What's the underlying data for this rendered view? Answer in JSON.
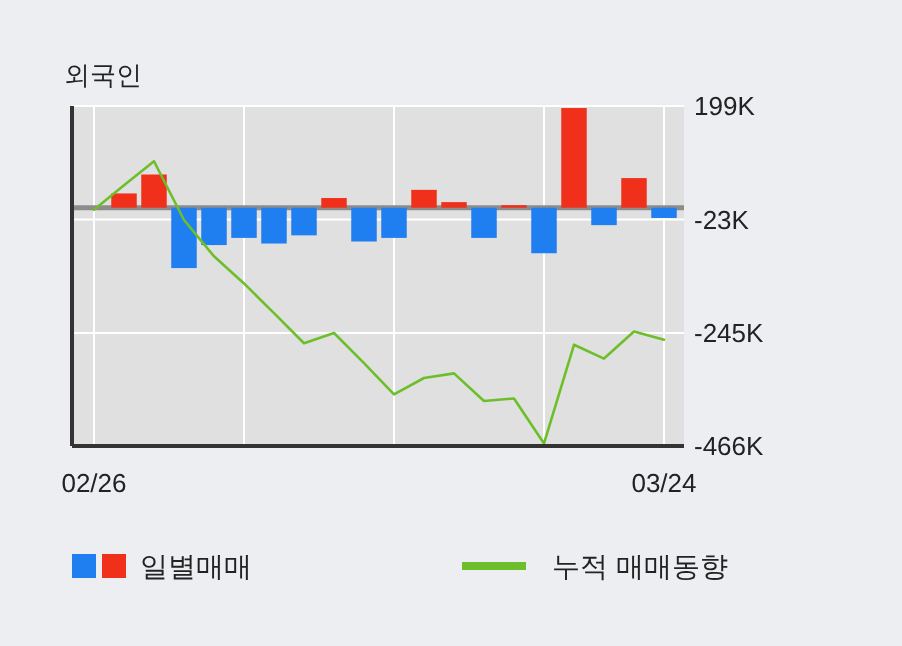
{
  "chart_data": {
    "type": "bar",
    "title": "외국인",
    "categories": [
      "02/26",
      null,
      null,
      null,
      null,
      null,
      null,
      null,
      null,
      null,
      null,
      null,
      null,
      null,
      null,
      null,
      null,
      null,
      null,
      "03/24"
    ],
    "ylim": [
      -466,
      199
    ],
    "yticks": [
      {
        "value": 199,
        "label": "199K"
      },
      {
        "value": -23,
        "label": "-23K"
      },
      {
        "value": -245,
        "label": "-245K"
      },
      {
        "value": -466,
        "label": "-466K"
      }
    ],
    "grid": true,
    "legend": "bottom",
    "marker": "none",
    "line_style": "solid",
    "series": [
      {
        "name": "일별매매",
        "colors": [
          "#1f7ef0",
          "#f0301a",
          "#f0301a",
          "#1f7ef0",
          "#1f7ef0",
          "#1f7ef0",
          "#1f7ef0",
          "#1f7ef0",
          "#f0301a",
          "#1f7ef0",
          "#1f7ef0",
          "#f0301a",
          "#f0301a",
          "#1f7ef0",
          "#f0301a",
          "#1f7ef0",
          "#f0301a",
          "#1f7ef0",
          "#f0301a",
          "#1f7ef0"
        ],
        "values": [
          null,
          28,
          65,
          -118,
          -73,
          -59,
          -70,
          -54,
          19,
          -66,
          -59,
          35,
          11,
          -59,
          5,
          -89,
          195,
          -34,
          58,
          -20
        ]
      },
      {
        "name": "누적 매매동향",
        "type": "line",
        "color": "#6cbf2a",
        "values": [
          -4,
          44,
          91,
          -24,
          -95,
          -148,
          -206,
          -265,
          -245,
          -304,
          -365,
          -333,
          -324,
          -378,
          -373,
          -461,
          -268,
          -295,
          -242,
          -258
        ]
      }
    ]
  }
}
